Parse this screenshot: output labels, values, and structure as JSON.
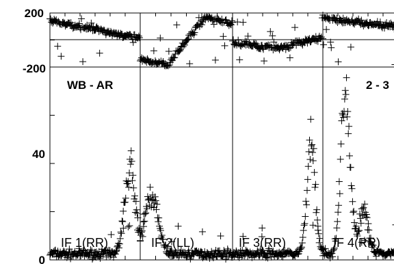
{
  "chart_data": {
    "type": "scatter",
    "panels": [
      {
        "name": "phase",
        "ylim": [
          -200,
          200
        ],
        "yticks": [
          {
            "value": 200,
            "label": "200"
          },
          {
            "value": -200,
            "label": "-200"
          }
        ]
      },
      {
        "name": "amplitude",
        "ylim": [
          0,
          80
        ],
        "yticks": [
          {
            "value": 40,
            "label": "40"
          },
          {
            "value": 0,
            "label": "0"
          }
        ]
      }
    ],
    "baselines": [
      {
        "title": "WB - AR",
        "label": "IF 1(RR)"
      },
      {
        "title": "",
        "label": "IF 2(LL)"
      },
      {
        "title": "",
        "label": "IF 3(RR)"
      },
      {
        "title": "2 - 3",
        "label": "IF 4(RR)"
      }
    ],
    "amplitude_peaks": [
      {
        "baseline": 0,
        "x": 0.89,
        "height": 36,
        "width": 0.06
      },
      {
        "baseline": 1,
        "x": 0.12,
        "height": 25,
        "width": 0.07
      },
      {
        "baseline": 2,
        "x": 0.87,
        "height": 47,
        "width": 0.045
      },
      {
        "baseline": 3,
        "x": 0.25,
        "height": 68,
        "width": 0.05
      },
      {
        "baseline": 3,
        "x": 0.45,
        "height": 18,
        "width": 0.05
      }
    ],
    "amplitude_baseline": 2.5,
    "marker": "+",
    "marker_color": "#000000"
  }
}
